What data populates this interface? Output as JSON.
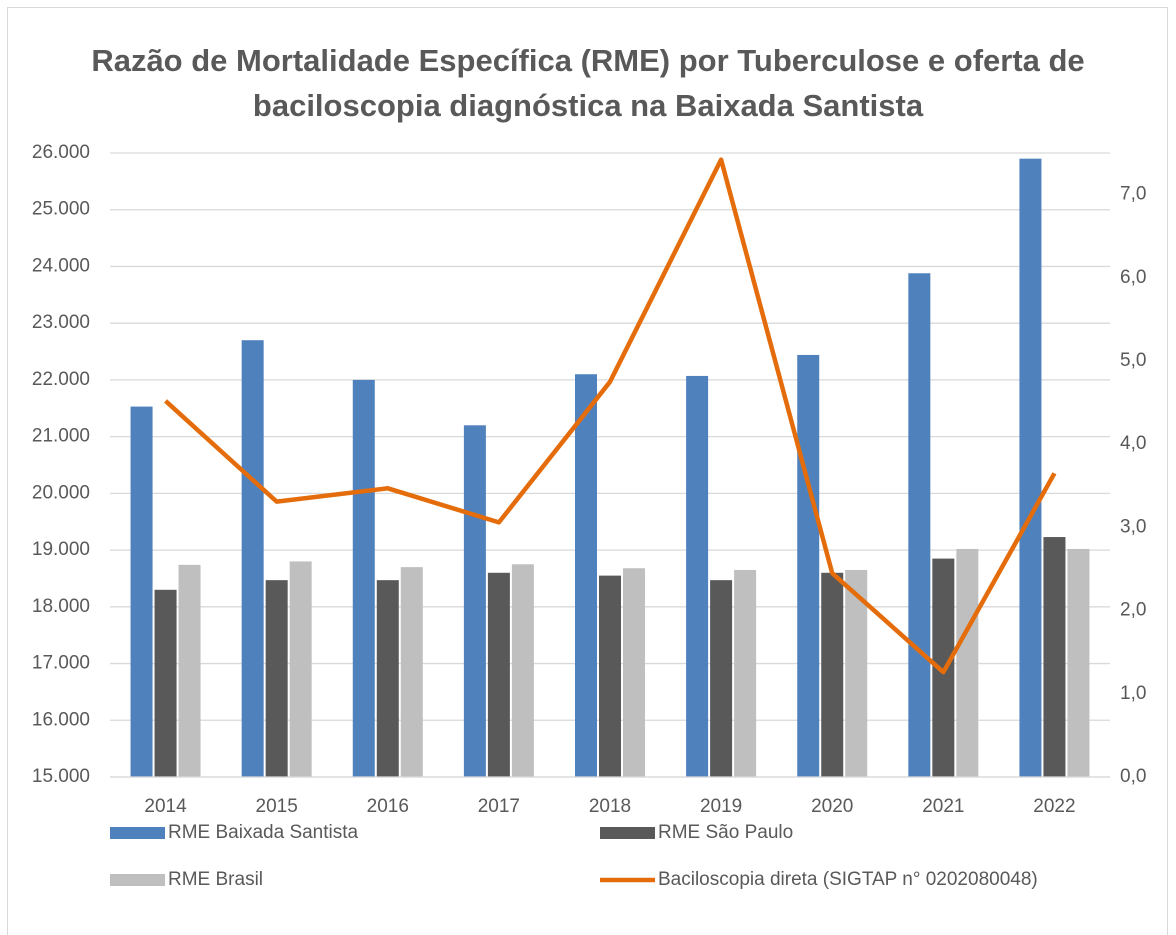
{
  "chart_data": {
    "type": "bar",
    "title": "Razão de Mortalidade Específica (RME) por Tuberculose e oferta de baciloscopia diagnóstica na Baixada Santista",
    "categories": [
      "2014",
      "2015",
      "2016",
      "2017",
      "2018",
      "2019",
      "2020",
      "2021",
      "2022"
    ],
    "series": [
      {
        "name": "RME Baixada Santista",
        "color": "#4f81bd",
        "type": "bar",
        "values": [
          21530,
          22700,
          22000,
          21200,
          22100,
          22070,
          22440,
          23880,
          25900
        ]
      },
      {
        "name": "RME São Paulo",
        "color": "#595959",
        "type": "bar",
        "values": [
          18300,
          18470,
          18470,
          18600,
          18550,
          18470,
          18600,
          18850,
          19230
        ]
      },
      {
        "name": "RME Brasil",
        "color": "#bfbfbf",
        "type": "bar",
        "values": [
          18740,
          18800,
          18700,
          18750,
          18680,
          18650,
          18650,
          19020,
          19020
        ]
      },
      {
        "name": "Baciloscopia direta (SIGTAP n° 0202080048)",
        "color": "#e46c0a",
        "type": "line",
        "axis": "y2",
        "values": [
          4.52,
          3.31,
          3.47,
          3.06,
          4.75,
          7.42,
          2.45,
          1.26,
          3.65
        ]
      }
    ],
    "ylim": [
      15000,
      26000
    ],
    "yticks": [
      {
        "value": 15000,
        "label": "15.000"
      },
      {
        "value": 16000,
        "label": "16.000"
      },
      {
        "value": 17000,
        "label": "17.000"
      },
      {
        "value": 18000,
        "label": "18.000"
      },
      {
        "value": 19000,
        "label": "19.000"
      },
      {
        "value": 20000,
        "label": "20.000"
      },
      {
        "value": 21000,
        "label": "21.000"
      },
      {
        "value": 22000,
        "label": "22.000"
      },
      {
        "value": 23000,
        "label": "23.000"
      },
      {
        "value": 24000,
        "label": "24.000"
      },
      {
        "value": 25000,
        "label": "25.000"
      },
      {
        "value": 26000,
        "label": "26.000"
      }
    ],
    "y2lim": [
      0,
      7.5
    ],
    "y2ticks": [
      {
        "value": 0,
        "label": "0,0"
      },
      {
        "value": 1,
        "label": "1,0"
      },
      {
        "value": 2,
        "label": "2,0"
      },
      {
        "value": 3,
        "label": "3,0"
      },
      {
        "value": 4,
        "label": "4,0"
      },
      {
        "value": 5,
        "label": "5,0"
      },
      {
        "value": 6,
        "label": "6,0"
      },
      {
        "value": 7,
        "label": "7,0"
      }
    ],
    "grid": true,
    "legend": "bottom"
  }
}
